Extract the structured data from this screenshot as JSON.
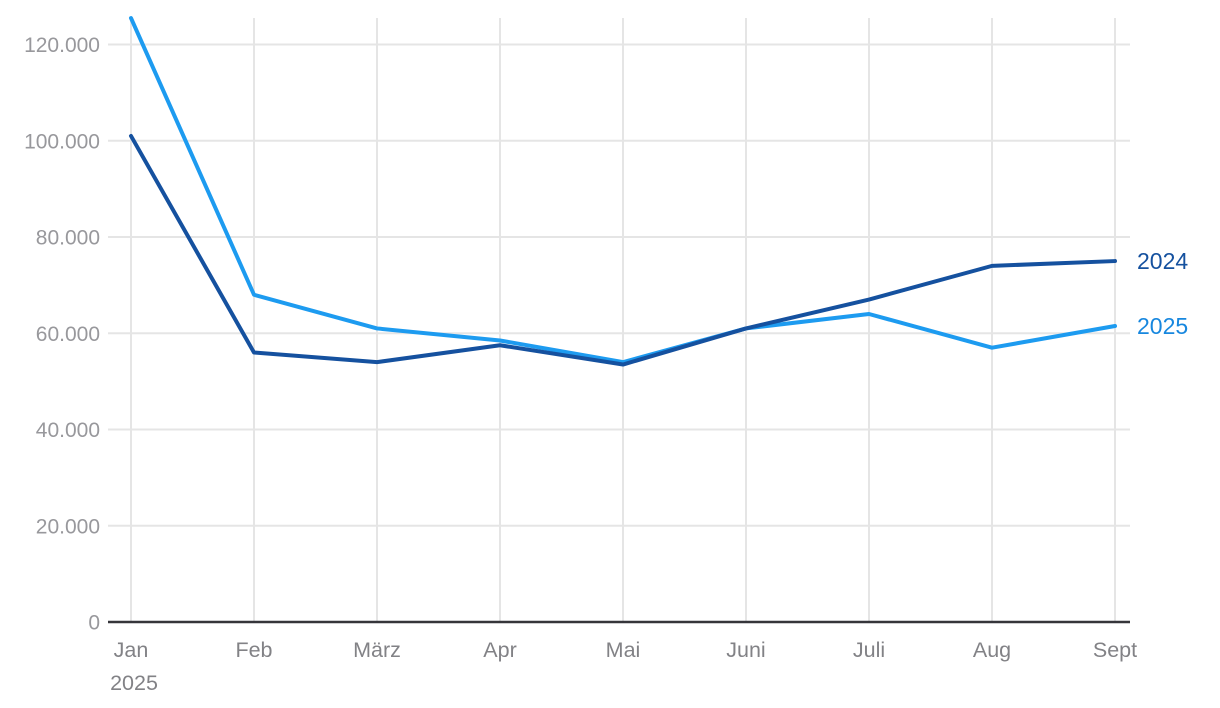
{
  "chart_data": {
    "type": "line",
    "categories": [
      "Jan",
      "Feb",
      "März",
      "Apr",
      "Mai",
      "Juni",
      "Juli",
      "Aug",
      "Sept"
    ],
    "x_first_sublabel": "2025",
    "series": [
      {
        "name": "2024",
        "color": "#15519f",
        "label_color": "#15519f",
        "values": [
          101000,
          56000,
          54000,
          57500,
          53500,
          61000,
          67000,
          74000,
          75000
        ]
      },
      {
        "name": "2025",
        "color": "#1d9bf0",
        "label_color": "#1787df",
        "values": [
          125500,
          68000,
          61000,
          58500,
          54000,
          61000,
          64000,
          57000,
          61500
        ]
      }
    ],
    "y_ticks": [
      {
        "value": 0,
        "label": "0"
      },
      {
        "value": 20000,
        "label": "20.000"
      },
      {
        "value": 40000,
        "label": "40.000"
      },
      {
        "value": 60000,
        "label": "60.000"
      },
      {
        "value": 80000,
        "label": "80.000"
      },
      {
        "value": 100000,
        "label": "100.000"
      },
      {
        "value": 120000,
        "label": "120.000"
      }
    ],
    "ylim": [
      0,
      127000
    ],
    "grid": true,
    "legend_position": "right-end-labels",
    "title": "",
    "xlabel": "",
    "ylabel": "",
    "colors": {
      "grid": "#e5e5e5",
      "axis_line": "#35353a",
      "y_tick_text": "#98989c",
      "x_tick_text": "#828286"
    }
  }
}
